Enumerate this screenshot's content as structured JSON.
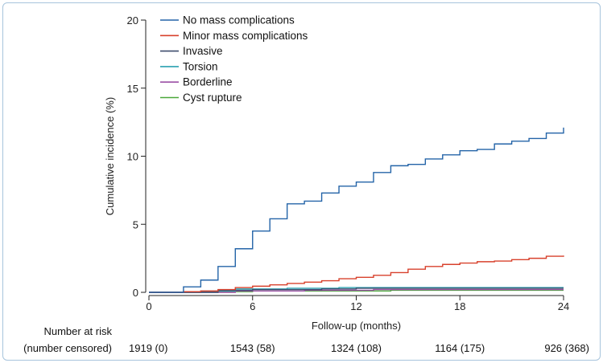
{
  "chart_data": {
    "type": "line",
    "step": true,
    "xlabel": "Follow-up (months)",
    "ylabel": "Cumulative incidence (%)",
    "xlim": [
      0,
      24
    ],
    "ylim": [
      0,
      20
    ],
    "xticks": [
      0,
      6,
      12,
      18,
      24
    ],
    "yticks": [
      0,
      5,
      10,
      15,
      20
    ],
    "legend_position": "top-left",
    "series": [
      {
        "name": "No mass complications",
        "color": "#2464a8",
        "x": [
          0,
          2,
          3,
          4,
          5,
          6,
          7,
          8,
          9,
          10,
          11,
          12,
          13,
          14,
          15,
          16,
          17,
          18,
          19,
          20,
          21,
          22,
          23,
          24,
          24
        ],
        "y": [
          0,
          0.4,
          0.9,
          1.9,
          3.2,
          4.5,
          5.4,
          6.5,
          6.7,
          7.3,
          7.8,
          8.1,
          8.8,
          9.3,
          9.4,
          9.8,
          10.1,
          10.4,
          10.5,
          10.9,
          11.1,
          11.3,
          11.7,
          11.7,
          12.1
        ]
      },
      {
        "name": "Minor mass complications",
        "color": "#d8412c",
        "x": [
          0,
          2,
          3,
          4,
          5,
          6,
          7,
          8,
          9,
          10,
          11,
          12,
          13,
          14,
          15,
          16,
          17,
          18,
          19,
          20,
          21,
          22,
          23,
          24
        ],
        "y": [
          0,
          0.05,
          0.1,
          0.2,
          0.35,
          0.45,
          0.55,
          0.65,
          0.75,
          0.85,
          1.0,
          1.1,
          1.25,
          1.45,
          1.7,
          1.9,
          2.05,
          2.15,
          2.25,
          2.3,
          2.4,
          2.5,
          2.65,
          2.7
        ]
      },
      {
        "name": "Invasive",
        "color": "#3c4c6c",
        "x": [
          0,
          4,
          6,
          10,
          12,
          24
        ],
        "y": [
          0,
          0.15,
          0.2,
          0.25,
          0.3,
          0.3
        ]
      },
      {
        "name": "Torsion",
        "color": "#2aa0b0",
        "x": [
          0,
          3,
          5,
          8,
          11,
          24
        ],
        "y": [
          0,
          0.1,
          0.25,
          0.3,
          0.35,
          0.35
        ]
      },
      {
        "name": "Borderline",
        "color": "#9b4fa5",
        "x": [
          0,
          5,
          9,
          13,
          24
        ],
        "y": [
          0,
          0.1,
          0.15,
          0.2,
          0.2
        ]
      },
      {
        "name": "Cyst rupture",
        "color": "#4aa83a",
        "x": [
          0,
          2,
          6,
          14,
          24
        ],
        "y": [
          0,
          0.05,
          0.1,
          0.15,
          0.15
        ]
      }
    ],
    "risk_table": {
      "label_line1": "Number at risk",
      "label_line2": "(number censored)",
      "months": [
        0,
        6,
        12,
        18,
        24
      ],
      "values": [
        "1919 (0)",
        "1543 (58)",
        "1324 (108)",
        "1164 (175)",
        "926 (368)"
      ]
    }
  }
}
